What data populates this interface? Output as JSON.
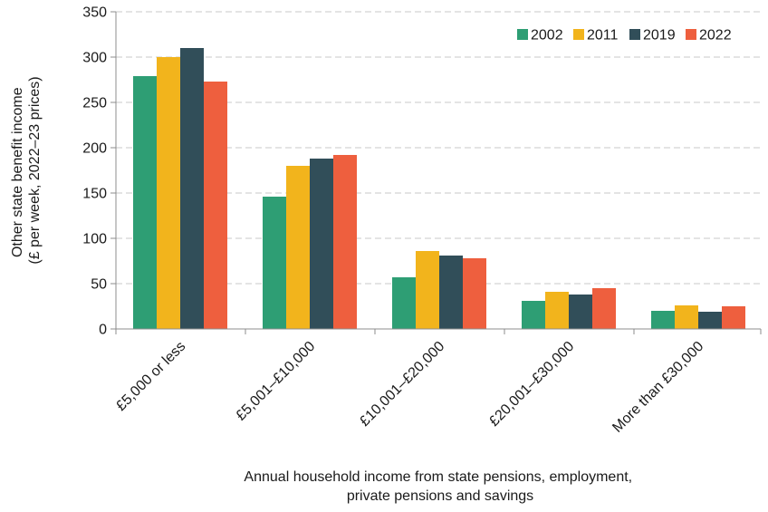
{
  "chart_data": {
    "type": "bar",
    "title": "",
    "xlabel_lines": [
      "Annual household income from state pensions, employment,",
      "private pensions and savings"
    ],
    "ylabel_lines": [
      "Other state benefit income",
      "(£ per week, 2022–23 prices)"
    ],
    "categories": [
      "£5,000 or less",
      "£5,001–£10,000",
      "£10,001–£20,000",
      "£20,001–£30,000",
      "More than £30,000"
    ],
    "series": [
      {
        "name": "2002",
        "color": "#2e9e74",
        "values": [
          279,
          146,
          57,
          31,
          20
        ]
      },
      {
        "name": "2011",
        "color": "#f2b41c",
        "values": [
          300,
          180,
          86,
          41,
          26
        ]
      },
      {
        "name": "2019",
        "color": "#314e59",
        "values": [
          310,
          188,
          81,
          38,
          19
        ]
      },
      {
        "name": "2022",
        "color": "#ee5f3e",
        "values": [
          273,
          192,
          78,
          45,
          25
        ]
      }
    ],
    "ylim": [
      0,
      350
    ],
    "yticks": [
      0,
      50,
      100,
      150,
      200,
      250,
      300,
      350
    ],
    "grid": true,
    "legend_position": "top-right"
  }
}
